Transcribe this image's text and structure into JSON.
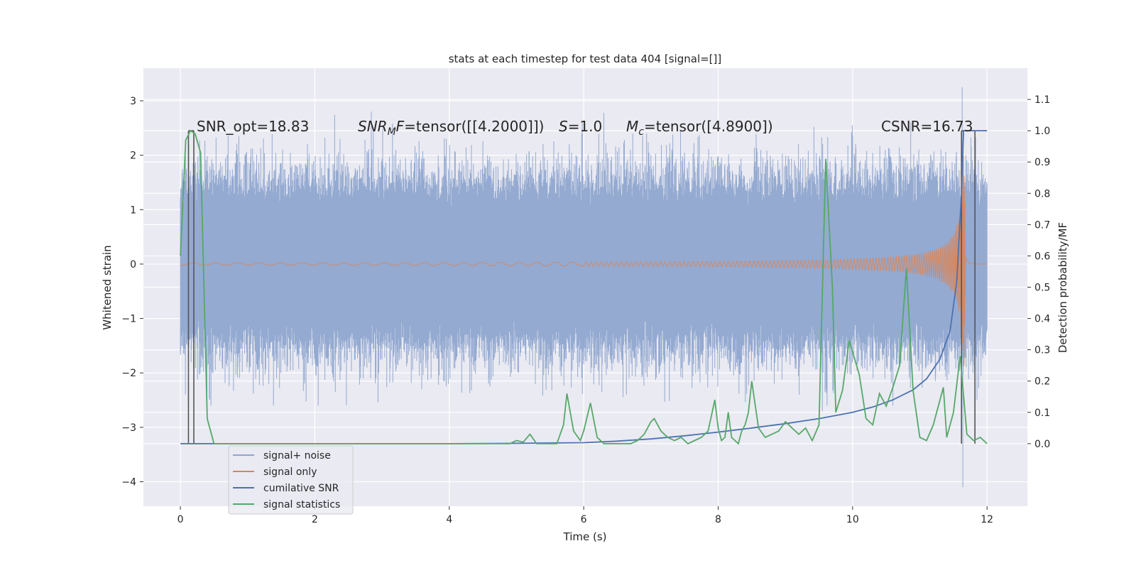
{
  "chart_data": {
    "type": "line",
    "title": "stats at each timestep for test data 404 [signal=[]]",
    "xlabel": "Time (s)",
    "ylabel": "Whitened strain",
    "ylabel_right": "Detection probability/MF",
    "xlim": [
      -0.55,
      12.6
    ],
    "ylim": [
      -4.45,
      3.6
    ],
    "ylim_right": [
      -0.2,
      1.2
    ],
    "x_ticks": [
      0,
      2,
      4,
      6,
      8,
      10,
      12
    ],
    "y_ticks": [
      -4,
      -3,
      -2,
      -1,
      0,
      1,
      2,
      3
    ],
    "y_ticks_right": [
      0.0,
      0.1,
      0.2,
      0.3,
      0.4,
      0.5,
      0.6,
      0.7,
      0.8,
      0.9,
      1.0,
      1.1
    ],
    "x_tick_labels": [
      "0",
      "2",
      "4",
      "6",
      "8",
      "10",
      "12"
    ],
    "y_tick_labels": [
      "−4",
      "−3",
      "−2",
      "−1",
      "0",
      "1",
      "2",
      "3"
    ],
    "y_tick_labels_right": [
      "0.0",
      "0.1",
      "0.2",
      "0.3",
      "0.4",
      "0.5",
      "0.6",
      "0.7",
      "0.8",
      "0.9",
      "1.0",
      "1.1"
    ],
    "grid": true,
    "legend_position": "lower-left",
    "annotations": {
      "snr_opt": "SNR_opt=18.83",
      "snr_mf_label": "SNR",
      "snr_mf_sub": "M",
      "snr_mf_f": "F",
      "snr_mf_value": "=tensor([[4.2000]])",
      "s_label": "S",
      "s_value": "=1.0",
      "mc_label": "M",
      "mc_sub": "c",
      "mc_value": "=tensor([4.8900])",
      "csnr": "CSNR=16.73"
    },
    "series": [
      {
        "name": "signal+ noise",
        "color": "#8fa6cf",
        "axis": "left",
        "noise_band": {
          "x_start": 0.0,
          "x_end": 12.0,
          "core_amplitude": 1.3,
          "max_peak": 3.25,
          "min_trough": -4.1
        }
      },
      {
        "name": "signal only",
        "color": "#dd8452",
        "axis": "left",
        "chirp": {
          "x_start": 0.0,
          "x_merger": 11.65,
          "peak_amplitude": 2.85
        }
      },
      {
        "name": "cumilative SNR",
        "color": "#4c72b0",
        "axis": "right",
        "x": [
          0,
          2,
          4,
          5,
          6,
          6.5,
          7,
          7.5,
          8,
          8.5,
          9,
          9.5,
          10,
          10.3,
          10.6,
          10.9,
          11.1,
          11.3,
          11.45,
          11.55,
          11.62,
          11.65,
          12.0
        ],
        "y": [
          0,
          0,
          0,
          0.001,
          0.003,
          0.008,
          0.015,
          0.025,
          0.037,
          0.05,
          0.064,
          0.08,
          0.1,
          0.117,
          0.14,
          0.172,
          0.207,
          0.27,
          0.36,
          0.52,
          0.8,
          1.0,
          1.0
        ]
      },
      {
        "name": "signal statistics",
        "color": "#55a868",
        "axis": "right",
        "x": [
          0.0,
          0.08,
          0.15,
          0.22,
          0.3,
          0.4,
          0.5,
          1.0,
          2.0,
          3.0,
          4.0,
          4.5,
          4.9,
          5.0,
          5.1,
          5.2,
          5.3,
          5.6,
          5.7,
          5.75,
          5.85,
          5.95,
          6.0,
          6.1,
          6.2,
          6.3,
          6.5,
          6.7,
          6.8,
          6.9,
          7.0,
          7.05,
          7.15,
          7.25,
          7.35,
          7.45,
          7.55,
          7.65,
          7.75,
          7.85,
          7.95,
          8.0,
          8.05,
          8.1,
          8.15,
          8.2,
          8.3,
          8.35,
          8.4,
          8.45,
          8.5,
          8.6,
          8.7,
          8.8,
          8.9,
          9.0,
          9.1,
          9.2,
          9.3,
          9.4,
          9.5,
          9.6,
          9.7,
          9.75,
          9.85,
          9.95,
          10.1,
          10.2,
          10.3,
          10.4,
          10.5,
          10.6,
          10.7,
          10.8,
          10.9,
          11.0,
          11.1,
          11.2,
          11.35,
          11.4,
          11.5,
          11.6,
          11.7,
          11.8,
          11.9,
          12.0
        ],
        "y": [
          0.6,
          0.97,
          1.0,
          0.99,
          0.93,
          0.08,
          0.0,
          0.0,
          0.0,
          0.0,
          0.0,
          0.0,
          0.0,
          0.01,
          0.005,
          0.03,
          0.0,
          0.0,
          0.06,
          0.16,
          0.04,
          0.01,
          0.04,
          0.13,
          0.02,
          0.0,
          0.0,
          0.0,
          0.01,
          0.03,
          0.07,
          0.08,
          0.04,
          0.02,
          0.01,
          0.02,
          0.0,
          0.01,
          0.02,
          0.04,
          0.14,
          0.05,
          0.01,
          0.02,
          0.1,
          0.02,
          0.0,
          0.04,
          0.06,
          0.1,
          0.2,
          0.05,
          0.02,
          0.03,
          0.04,
          0.07,
          0.05,
          0.03,
          0.05,
          0.01,
          0.06,
          0.91,
          0.5,
          0.1,
          0.17,
          0.33,
          0.22,
          0.08,
          0.06,
          0.16,
          0.12,
          0.18,
          0.25,
          0.56,
          0.17,
          0.02,
          0.01,
          0.06,
          0.18,
          0.02,
          0.1,
          0.28,
          0.03,
          0.01,
          0.02,
          0.0
        ]
      }
    ],
    "vertical_lines": [
      {
        "x": 0.12,
        "color": "#555555"
      },
      {
        "x": 0.2,
        "color": "#555555"
      },
      {
        "x": 11.62,
        "color": "#555555"
      },
      {
        "x": 11.82,
        "color": "#555555"
      }
    ]
  }
}
